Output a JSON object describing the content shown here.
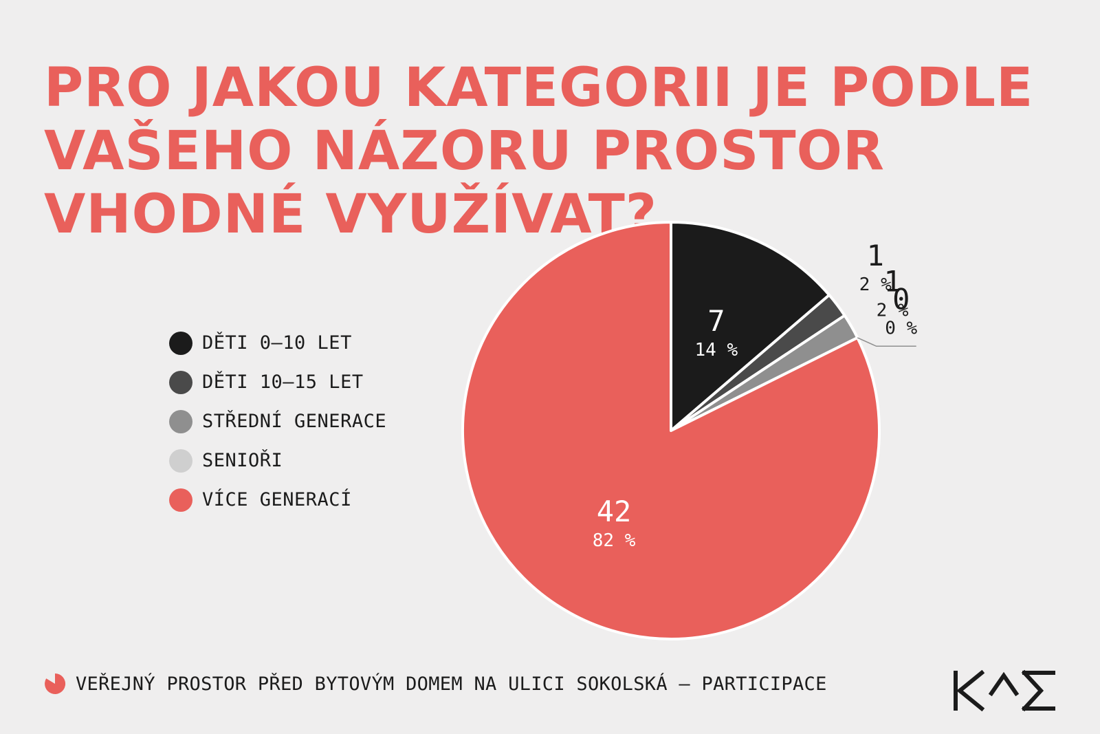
{
  "title": "PRO JAKOU KATEGORII JE PODLE VAŠEHO NÁZORU PROSTOR VHODNÉ VYUŽÍVAT?",
  "footer": {
    "text": "VEŘEJNÝ PROSTOR PŘED BYTOVÝM DOMEM NA ULICI SOKOLSKÁ – PARTICIPACE",
    "icon": "pie-chart-icon"
  },
  "logo": {
    "text": "KAM",
    "icon": "kam-logo-icon"
  },
  "colors": {
    "accent": "#e9605b",
    "text": "#1b1b1b",
    "background": "#efeeee"
  },
  "chart_data": {
    "type": "pie",
    "title": "PRO JAKOU KATEGORII JE PODLE VAŠEHO NÁZORU PROSTOR VHODNÉ VYUŽÍVAT?",
    "legend_position": "left",
    "slices": [
      {
        "label": "DĚTI 0–10 LET",
        "value": 7,
        "percent": "14 %",
        "value_label": "7",
        "color": "#1b1b1b"
      },
      {
        "label": "DĚTI 10–15 LET",
        "value": 1,
        "percent": "2 %",
        "value_label": "1",
        "color": "#4a4a4a"
      },
      {
        "label": "STŘEDNÍ GENERACE",
        "value": 1,
        "percent": "2 %",
        "value_label": "1",
        "color": "#8f8f8f"
      },
      {
        "label": "SENIOŘI",
        "value": 0,
        "percent": "0 %",
        "value_label": "0",
        "color": "#cfcfcf"
      },
      {
        "label": "VÍCE GENERACÍ",
        "value": 42,
        "percent": "82 %",
        "value_label": "42",
        "color": "#e9605b"
      }
    ]
  }
}
